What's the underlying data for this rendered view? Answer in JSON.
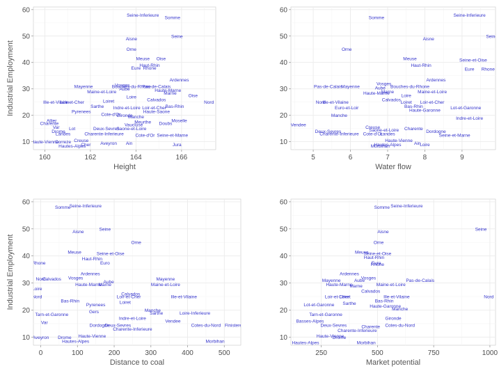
{
  "colors": {
    "label": "#3333cc",
    "grid": "#ebebeb",
    "axis_text": "#4d4d4d",
    "title_text": "#555555",
    "frame": "#c8c8c8"
  },
  "chart_data": [
    {
      "type": "scatter",
      "xlabel": "Height",
      "ylabel": "Industrial Employment",
      "xlim": [
        159.5,
        167.5
      ],
      "ylim": [
        7,
        61
      ],
      "xticks": [
        160,
        162,
        164,
        166
      ],
      "yticks": [
        10,
        20,
        30,
        40,
        50,
        60
      ],
      "grid": true,
      "points": [
        {
          "label": "Seine-Inferieure",
          "x": 164.3,
          "y": 58
        },
        {
          "label": "Somme",
          "x": 165.6,
          "y": 57
        },
        {
          "label": "Aisne",
          "x": 163.8,
          "y": 49
        },
        {
          "label": "Seine",
          "x": 165.8,
          "y": 50
        },
        {
          "label": "Orne",
          "x": 163.8,
          "y": 45
        },
        {
          "label": "Meuse",
          "x": 164.3,
          "y": 41.5
        },
        {
          "label": "Haut-Rhin",
          "x": 164.6,
          "y": 39
        },
        {
          "label": "Eure",
          "x": 164.0,
          "y": 38
        },
        {
          "label": "Rhone",
          "x": 164.6,
          "y": 38
        },
        {
          "label": "Oise",
          "x": 165.1,
          "y": 41.5
        },
        {
          "label": "Ardennes",
          "x": 165.9,
          "y": 33.5
        },
        {
          "label": "Mayenne",
          "x": 161.7,
          "y": 31
        },
        {
          "label": "Vosges",
          "x": 163.4,
          "y": 31.5
        },
        {
          "label": "Bouches-du-Rhone",
          "x": 163.8,
          "y": 31
        },
        {
          "label": "Pas-de-Calais",
          "x": 164.9,
          "y": 31
        },
        {
          "label": "Maine-et-Loire",
          "x": 162.5,
          "y": 29
        },
        {
          "label": "Aube",
          "x": 163.5,
          "y": 30
        },
        {
          "label": "Marne",
          "x": 165.5,
          "y": 28.5
        },
        {
          "label": "Haute-Marne",
          "x": 165.4,
          "y": 29.5
        },
        {
          "label": "Oise",
          "x": 166.5,
          "y": 27.5
        },
        {
          "label": "Loire",
          "x": 163.8,
          "y": 27
        },
        {
          "label": "Calvados",
          "x": 164.9,
          "y": 26
        },
        {
          "label": "Nord",
          "x": 167.2,
          "y": 25
        },
        {
          "label": "Ille-et-Vilaine",
          "x": 160.5,
          "y": 25
        },
        {
          "label": "Loir-et-Cher",
          "x": 161.2,
          "y": 25
        },
        {
          "label": "Loiret",
          "x": 162.8,
          "y": 25.5
        },
        {
          "label": "Bas-Rhin",
          "x": 165.7,
          "y": 23.5
        },
        {
          "label": "Loir-et-Cher",
          "x": 164.8,
          "y": 23
        },
        {
          "label": "Indre-et-Loire",
          "x": 163.6,
          "y": 23
        },
        {
          "label": "Sarthe",
          "x": 162.3,
          "y": 23.5
        },
        {
          "label": "Pyrenees",
          "x": 161.6,
          "y": 21.5
        },
        {
          "label": "Haute-Saone",
          "x": 164.9,
          "y": 21.5
        },
        {
          "label": "Cote-d'Or",
          "x": 162.9,
          "y": 20.5
        },
        {
          "label": "Gironde",
          "x": 163.5,
          "y": 20
        },
        {
          "label": "Manche",
          "x": 164.0,
          "y": 19.5
        },
        {
          "label": "Vaucluse",
          "x": 163.9,
          "y": 16.5
        },
        {
          "label": "Allier",
          "x": 160.3,
          "y": 18
        },
        {
          "label": "Charente",
          "x": 160.2,
          "y": 17
        },
        {
          "label": "Meurthe",
          "x": 164.3,
          "y": 17.5
        },
        {
          "label": "Moselle",
          "x": 165.9,
          "y": 18
        },
        {
          "label": "Doubs",
          "x": 165.3,
          "y": 17
        },
        {
          "label": "Var",
          "x": 160.5,
          "y": 15.5
        },
        {
          "label": "Lot",
          "x": 161.2,
          "y": 15
        },
        {
          "label": "Landes",
          "x": 160.8,
          "y": 13
        },
        {
          "label": "Drome",
          "x": 160.6,
          "y": 14
        },
        {
          "label": "Deux-Sevres",
          "x": 162.7,
          "y": 15
        },
        {
          "label": "Saone-et-Loire",
          "x": 163.8,
          "y": 15
        },
        {
          "label": "Charente-Inferieure",
          "x": 162.6,
          "y": 13
        },
        {
          "label": "Cote-d'Or",
          "x": 164.4,
          "y": 12.5
        },
        {
          "label": "Seine-et-Marne",
          "x": 165.6,
          "y": 12.5
        },
        {
          "label": "Haute-Vienne",
          "x": 160.0,
          "y": 10
        },
        {
          "label": "Correze",
          "x": 160.8,
          "y": 10
        },
        {
          "label": "Creuse",
          "x": 161.6,
          "y": 10.5
        },
        {
          "label": "Aveyron",
          "x": 162.8,
          "y": 9.5
        },
        {
          "label": "Ain",
          "x": 163.7,
          "y": 9.5
        },
        {
          "label": "Jura",
          "x": 165.8,
          "y": 9
        },
        {
          "label": "Hautes-Alpes",
          "x": 161.2,
          "y": 8.5
        },
        {
          "label": "Cher",
          "x": 161.8,
          "y": 9
        }
      ]
    },
    {
      "type": "scatter",
      "xlabel": "Water flow",
      "ylabel": "",
      "xlim": [
        4.4,
        9.9
      ],
      "ylim": [
        7,
        61
      ],
      "xticks": [
        5,
        6,
        7,
        8,
        9
      ],
      "yticks": [
        10,
        20,
        30,
        40,
        50,
        60
      ],
      "grid": true,
      "points": [
        {
          "label": "Seine-Inferieure",
          "x": 9.2,
          "y": 58
        },
        {
          "label": "Somme",
          "x": 6.7,
          "y": 57
        },
        {
          "label": "Seine",
          "x": 9.8,
          "y": 50
        },
        {
          "label": "Aisne",
          "x": 8.1,
          "y": 49
        },
        {
          "label": "Orne",
          "x": 5.9,
          "y": 45
        },
        {
          "label": "Meuse",
          "x": 7.6,
          "y": 41.5
        },
        {
          "label": "Haut-Rhin",
          "x": 7.9,
          "y": 39
        },
        {
          "label": "Seine-et-Oise",
          "x": 9.3,
          "y": 41
        },
        {
          "label": "Eure",
          "x": 9.2,
          "y": 37.5
        },
        {
          "label": "Rhone",
          "x": 9.7,
          "y": 37.5
        },
        {
          "label": "Ardennes",
          "x": 8.3,
          "y": 33.5
        },
        {
          "label": "Pas-de-Calais",
          "x": 5.4,
          "y": 31
        },
        {
          "label": "Mayenne",
          "x": 6.0,
          "y": 31
        },
        {
          "label": "Vosges",
          "x": 6.9,
          "y": 32
        },
        {
          "label": "Aube",
          "x": 6.8,
          "y": 30.5
        },
        {
          "label": "Bouches-du-Rhone",
          "x": 7.6,
          "y": 31
        },
        {
          "label": "Maine-et-Loire",
          "x": 8.2,
          "y": 29
        },
        {
          "label": "Marne",
          "x": 7.0,
          "y": 29
        },
        {
          "label": "Haute-Marne",
          "x": 6.7,
          "y": 28.5
        },
        {
          "label": "Loire",
          "x": 7.5,
          "y": 27.5
        },
        {
          "label": "Calvados",
          "x": 7.1,
          "y": 26
        },
        {
          "label": "Loiret",
          "x": 7.5,
          "y": 25
        },
        {
          "label": "Loir-et-Cher",
          "x": 8.2,
          "y": 25
        },
        {
          "label": "Nord",
          "x": 5.2,
          "y": 25
        },
        {
          "label": "Ille-et-Vilaine",
          "x": 5.6,
          "y": 25
        },
        {
          "label": "Euro-et-Loir",
          "x": 5.9,
          "y": 23
        },
        {
          "label": "Bas-Rhin",
          "x": 7.7,
          "y": 23.5
        },
        {
          "label": "Lot-et-Garonne",
          "x": 9.1,
          "y": 23
        },
        {
          "label": "Haute-Garonne",
          "x": 8.0,
          "y": 22
        },
        {
          "label": "Manche",
          "x": 5.7,
          "y": 20
        },
        {
          "label": "Indre-et-Loire",
          "x": 9.2,
          "y": 19
        },
        {
          "label": "Vendee",
          "x": 4.6,
          "y": 16.5
        },
        {
          "label": "Creuse",
          "x": 6.6,
          "y": 15.5
        },
        {
          "label": "Deux-Sevres",
          "x": 5.4,
          "y": 14
        },
        {
          "label": "Charente-Inferieure",
          "x": 5.7,
          "y": 13
        },
        {
          "label": "Cote-d'Or",
          "x": 6.6,
          "y": 13
        },
        {
          "label": "Landes",
          "x": 7.0,
          "y": 13
        },
        {
          "label": "Saone-et-Loire",
          "x": 6.9,
          "y": 14.5
        },
        {
          "label": "Charente",
          "x": 7.7,
          "y": 15
        },
        {
          "label": "Dordogne",
          "x": 8.3,
          "y": 14
        },
        {
          "label": "Seine-et-Marne",
          "x": 8.8,
          "y": 12.5
        },
        {
          "label": "Haute-Vienne",
          "x": 7.3,
          "y": 10.5
        },
        {
          "label": "Hautes-Alpes",
          "x": 7.0,
          "y": 9
        },
        {
          "label": "Morbihan",
          "x": 6.8,
          "y": 8.5
        },
        {
          "label": "Ain",
          "x": 7.8,
          "y": 9.5
        },
        {
          "label": "Loire",
          "x": 8.0,
          "y": 9
        }
      ]
    },
    {
      "type": "scatter",
      "xlabel": "Distance to coal",
      "ylabel": "Industrial Employment",
      "xlim": [
        -20,
        545
      ],
      "ylim": [
        7,
        61
      ],
      "xticks": [
        0,
        100,
        200,
        300,
        400,
        500
      ],
      "yticks": [
        10,
        20,
        30,
        40,
        50,
        60
      ],
      "grid": true,
      "points": [
        {
          "label": "Somme",
          "x": 60,
          "y": 58
        },
        {
          "label": "Seine-Inferieure",
          "x": 122,
          "y": 58.5
        },
        {
          "label": "Aisne",
          "x": 102,
          "y": 49
        },
        {
          "label": "Seine",
          "x": 175,
          "y": 50
        },
        {
          "label": "Orne",
          "x": 260,
          "y": 45
        },
        {
          "label": "Meuse",
          "x": 92,
          "y": 41.5
        },
        {
          "label": "Haut-Rhin",
          "x": 140,
          "y": 39
        },
        {
          "label": "Seine-et-Oise",
          "x": 190,
          "y": 41
        },
        {
          "label": "Euro",
          "x": 175,
          "y": 37.5
        },
        {
          "label": "Rhone",
          "x": -5,
          "y": 37.5
        },
        {
          "label": "Ardennes",
          "x": 135,
          "y": 33.5
        },
        {
          "label": "Nord",
          "x": 0,
          "y": 31.5
        },
        {
          "label": "Calvados",
          "x": 30,
          "y": 31.5
        },
        {
          "label": "Vosges",
          "x": 95,
          "y": 32
        },
        {
          "label": "Aube",
          "x": 185,
          "y": 30.5
        },
        {
          "label": "Mayenne",
          "x": 340,
          "y": 31.5
        },
        {
          "label": "Maine-et-Loire",
          "x": 340,
          "y": 29.5
        },
        {
          "label": "Haute-Marne",
          "x": 130,
          "y": 29.5
        },
        {
          "label": "Marne",
          "x": 175,
          "y": 29.5
        },
        {
          "label": "Loire",
          "x": -10,
          "y": 28
        },
        {
          "label": "Nord",
          "x": -10,
          "y": 25
        },
        {
          "label": "Calvados",
          "x": 245,
          "y": 26
        },
        {
          "label": "Loir-et-Cher",
          "x": 240,
          "y": 25
        },
        {
          "label": "Ille-et-Vilaine",
          "x": 390,
          "y": 25
        },
        {
          "label": "Bas-Rhin",
          "x": 80,
          "y": 23.5
        },
        {
          "label": "Loiret",
          "x": 230,
          "y": 23
        },
        {
          "label": "Pyrenees",
          "x": 150,
          "y": 22
        },
        {
          "label": "Manche",
          "x": 305,
          "y": 20
        },
        {
          "label": "Sarthe",
          "x": 315,
          "y": 19
        },
        {
          "label": "Loire-Inferieure",
          "x": 420,
          "y": 19
        },
        {
          "label": "Tarn-et-Garonne",
          "x": 30,
          "y": 18.5
        },
        {
          "label": "Gers",
          "x": 145,
          "y": 19.5
        },
        {
          "label": "Vendee",
          "x": 360,
          "y": 16
        },
        {
          "label": "Indre-et-Loire",
          "x": 250,
          "y": 17
        },
        {
          "label": "Cotes-du-Nord",
          "x": 450,
          "y": 14.5
        },
        {
          "label": "Finistere",
          "x": 525,
          "y": 14.5
        },
        {
          "label": "Var",
          "x": 10,
          "y": 15.5
        },
        {
          "label": "Dordogne",
          "x": 160,
          "y": 14.5
        },
        {
          "label": "Deux-Sevres",
          "x": 210,
          "y": 14.5
        },
        {
          "label": "Charente-Inferieure",
          "x": 250,
          "y": 13
        },
        {
          "label": "Haute-Vienne",
          "x": 140,
          "y": 10.5
        },
        {
          "label": "Aveyron",
          "x": 0,
          "y": 10
        },
        {
          "label": "Drome",
          "x": 65,
          "y": 10
        },
        {
          "label": "Hautes-Alpes",
          "x": 95,
          "y": 8.5
        },
        {
          "label": "Morbihan",
          "x": 475,
          "y": 8.5
        }
      ]
    },
    {
      "type": "scatter",
      "xlabel": "Market potential",
      "ylabel": "",
      "xlim": [
        115,
        1025
      ],
      "ylim": [
        7,
        61
      ],
      "xticks": [
        250,
        500,
        750,
        1000
      ],
      "yticks": [
        10,
        20,
        30,
        40,
        50,
        60
      ],
      "grid": true,
      "points": [
        {
          "label": "Somme",
          "x": 520,
          "y": 58
        },
        {
          "label": "Seine-Inferieure",
          "x": 630,
          "y": 58.5
        },
        {
          "label": "Aisne",
          "x": 525,
          "y": 49
        },
        {
          "label": "Seine",
          "x": 960,
          "y": 50
        },
        {
          "label": "Orne",
          "x": 505,
          "y": 45
        },
        {
          "label": "Meuse",
          "x": 430,
          "y": 41.5
        },
        {
          "label": "Seine-et-Oise",
          "x": 500,
          "y": 41
        },
        {
          "label": "Haut-Rhin",
          "x": 485,
          "y": 39.5
        },
        {
          "label": "Eure",
          "x": 495,
          "y": 37.5
        },
        {
          "label": "Rhone",
          "x": 500,
          "y": 37
        },
        {
          "label": "Ardennes",
          "x": 375,
          "y": 33.5
        },
        {
          "label": "Vosges",
          "x": 460,
          "y": 32
        },
        {
          "label": "Aube",
          "x": 420,
          "y": 31
        },
        {
          "label": "Pas-de-Calais",
          "x": 690,
          "y": 31
        },
        {
          "label": "Mayenne",
          "x": 295,
          "y": 31
        },
        {
          "label": "Haute-Marne",
          "x": 330,
          "y": 29.5
        },
        {
          "label": "Maine-et-Loire",
          "x": 560,
          "y": 29.5
        },
        {
          "label": "Marne",
          "x": 405,
          "y": 29
        },
        {
          "label": "Calvados",
          "x": 470,
          "y": 27
        },
        {
          "label": "Loir-et-Cher",
          "x": 320,
          "y": 25
        },
        {
          "label": "Loiret",
          "x": 355,
          "y": 25
        },
        {
          "label": "Ille-et-Vilaine",
          "x": 585,
          "y": 25
        },
        {
          "label": "Nord",
          "x": 995,
          "y": 25
        },
        {
          "label": "Bas-Rhin",
          "x": 530,
          "y": 23.5
        },
        {
          "label": "Sarthe",
          "x": 375,
          "y": 22.5
        },
        {
          "label": "Haute-Garonne",
          "x": 535,
          "y": 21.5
        },
        {
          "label": "Lot-et-Garonne",
          "x": 240,
          "y": 22
        },
        {
          "label": "Manche",
          "x": 600,
          "y": 20.5
        },
        {
          "label": "Tarn-et-Garonne",
          "x": 270,
          "y": 18.5
        },
        {
          "label": "Gironde",
          "x": 570,
          "y": 17
        },
        {
          "label": "Basses-Alpes",
          "x": 200,
          "y": 16
        },
        {
          "label": "Deux-Sevres",
          "x": 305,
          "y": 14.5
        },
        {
          "label": "Charente",
          "x": 470,
          "y": 14
        },
        {
          "label": "Cotes-du-Nord",
          "x": 600,
          "y": 14.5
        },
        {
          "label": "Charente-Inferieure",
          "x": 410,
          "y": 12.5
        },
        {
          "label": "Haute-Vienne",
          "x": 290,
          "y": 10.5
        },
        {
          "label": "Drome",
          "x": 330,
          "y": 10
        },
        {
          "label": "Hautes-Alpes",
          "x": 180,
          "y": 8
        },
        {
          "label": "Morbihan",
          "x": 450,
          "y": 8
        }
      ]
    }
  ]
}
